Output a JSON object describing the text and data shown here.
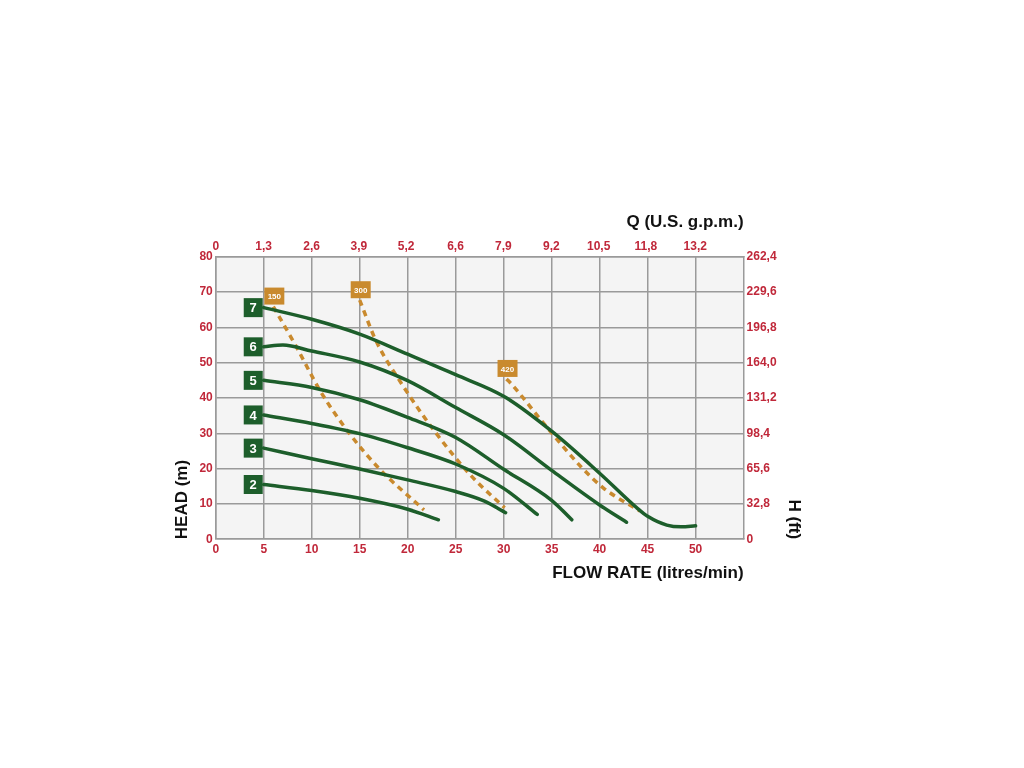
{
  "chart_data": {
    "type": "line",
    "xlabel": "FLOW RATE (litres/min)",
    "ylabel": "HEAD (m)",
    "y2label": "H (ft)",
    "x2label": "Q (U.S. g.p.m.)",
    "xlim": [
      0,
      55
    ],
    "xticks": [
      0,
      5,
      10,
      15,
      20,
      25,
      30,
      35,
      40,
      45,
      50
    ],
    "ylim": [
      0,
      80
    ],
    "yticks": [
      0,
      10,
      20,
      30,
      40,
      50,
      60,
      70,
      80
    ],
    "x2lim": [
      0,
      14.53
    ],
    "x2ticks": [
      0,
      {
        "value": 1.32,
        "label": "1,3"
      },
      {
        "value": 2.64,
        "label": "2,6"
      },
      {
        "value": 3.94,
        "label": "3,9"
      },
      {
        "value": 5.24,
        "label": "5,2"
      },
      {
        "value": 6.6,
        "label": "6,6"
      },
      {
        "value": 7.92,
        "label": "7,9"
      },
      {
        "value": 9.24,
        "label": "9,2"
      },
      {
        "value": 10.54,
        "label": "10,5"
      },
      {
        "value": 11.84,
        "label": "11,8"
      },
      {
        "value": 13.2,
        "label": "13,2"
      }
    ],
    "y2lim": [
      0,
      262.4
    ],
    "y2ticks": [
      0,
      {
        "value": 32.8,
        "label": "32,8"
      },
      {
        "value": 65.6,
        "label": "65,6"
      },
      {
        "value": 98.4,
        "label": "98,4"
      },
      {
        "value": 131.2,
        "label": "131,2"
      },
      {
        "value": 164,
        "label": "164,0"
      },
      {
        "value": 196.8,
        "label": "196,8"
      },
      {
        "value": 229.6,
        "label": "229,6"
      },
      {
        "value": 262.4,
        "label": "262,4"
      }
    ],
    "grid": true,
    "legend": false,
    "marker": "none",
    "line_style": "solid",
    "series": [
      {
        "name": "2",
        "color": "#1d5e2b",
        "x": [
          5,
          10,
          15,
          20,
          23.2
        ],
        "values": [
          15.5,
          13.8,
          11.6,
          8.5,
          5.5
        ]
      },
      {
        "name": "3",
        "color": "#1d5e2b",
        "x": [
          5,
          10,
          15,
          20,
          25,
          28,
          30.2
        ],
        "values": [
          25.8,
          22.8,
          19.9,
          16.8,
          13.5,
          10.8,
          7.5
        ]
      },
      {
        "name": "4",
        "color": "#1d5e2b",
        "x": [
          5,
          10,
          15,
          20,
          25,
          30,
          33.5
        ],
        "values": [
          35.2,
          32.8,
          29.9,
          25.9,
          21.3,
          14.4,
          7
        ]
      },
      {
        "name": "5",
        "color": "#1d5e2b",
        "x": [
          5,
          10,
          15,
          20,
          25,
          30,
          35,
          37.1
        ],
        "values": [
          45,
          43,
          39.5,
          34.5,
          28.8,
          19.8,
          11,
          5.5
        ]
      },
      {
        "name": "6",
        "color": "#1d5e2b",
        "x": [
          5,
          7,
          10,
          15,
          20,
          25,
          30,
          35,
          40,
          42.8
        ],
        "values": [
          54.5,
          55,
          53.3,
          50.2,
          44.9,
          37.3,
          29.6,
          19.5,
          9.7,
          4.8
        ]
      },
      {
        "name": "7",
        "color": "#1d5e2b",
        "x": [
          5,
          10,
          15,
          20,
          25,
          30,
          35,
          40,
          44,
          45,
          47,
          48.5,
          50
        ],
        "values": [
          65.6,
          62.3,
          58.1,
          52.4,
          46.6,
          40.5,
          30.6,
          18.7,
          8.6,
          6.5,
          4,
          3.5,
          3.8
        ]
      },
      {
        "name": "150",
        "color": "#c98a2e",
        "line_style": "dashed",
        "x": [
          6,
          8.3,
          11,
          14,
          17.1,
          21.7
        ],
        "values": [
          65.9,
          55,
          41.5,
          29.7,
          19.8,
          8.3
        ]
      },
      {
        "name": "300",
        "color": "#c98a2e",
        "line_style": "dashed",
        "x": [
          15,
          16.7,
          19.4,
          22.8,
          26.6,
          30.1
        ],
        "values": [
          67.7,
          56.2,
          43.9,
          30.6,
          18,
          8.9
        ]
      },
      {
        "name": "420",
        "color": "#c98a2e",
        "line_style": "dashed",
        "x": [
          30.3,
          30.8,
          34.3,
          38.1,
          40.4,
          44.2
        ],
        "values": [
          45.4,
          44,
          32.4,
          20.4,
          14.5,
          8
        ]
      }
    ]
  }
}
